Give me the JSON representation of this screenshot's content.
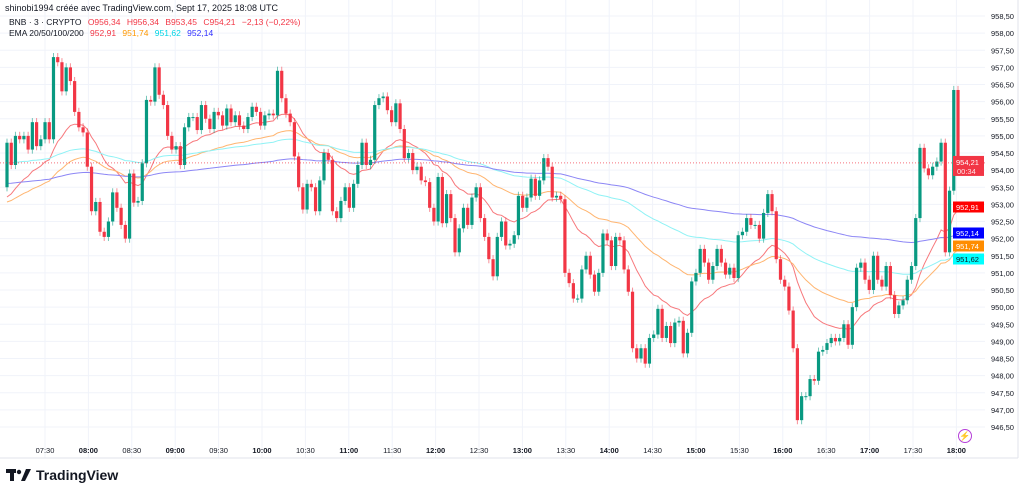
{
  "header": {
    "attribution": "shinobi1994 créée avec TradingView.com, Sept 17, 2025 18:08 UTC"
  },
  "legend": {
    "symbol": "BNB · 3 · CRYPTO",
    "open": "O956,34",
    "high": "H956,34",
    "low": "B953,45",
    "close": "C954,21",
    "change": "−2,13 (−0,22%)",
    "ema_label": "EMA 20/50/100/200",
    "ema20": "952,91",
    "ema50": "951,74",
    "ema100": "951,62",
    "ema200": "952,14"
  },
  "branding": {
    "logo_text": "TradingView"
  },
  "colors": {
    "up": "#089981",
    "down": "#f23645",
    "ema20": "#f7787c",
    "ema50": "#ffb570",
    "ema100": "#8ff2f5",
    "ema200": "#8c86f5",
    "ema20_label": "#ff0000",
    "ema50_label": "#ff8c00",
    "ema100_label": "#00ffff",
    "ema200_label": "#0000ff"
  },
  "chart_data": {
    "type": "candlestick",
    "title": "BNB · 3 · CRYPTO",
    "interval_minutes": 3,
    "y_range": [
      946.5,
      958.5
    ],
    "y_ticks": [
      "958,50",
      "958,00",
      "957,50",
      "957,00",
      "956,50",
      "956,00",
      "955,50",
      "955,00",
      "954,50",
      "954,00",
      "953,50",
      "953,00",
      "952,50",
      "952,00",
      "951,50",
      "951,00",
      "950,50",
      "950,00",
      "949,50",
      "949,00",
      "948,50",
      "948,00",
      "947,50",
      "947,00",
      "946,50"
    ],
    "x_ticks": [
      "07:30",
      "08:00",
      "08:30",
      "09:00",
      "09:30",
      "10:00",
      "10:30",
      "11:00",
      "11:30",
      "12:00",
      "12:30",
      "13:00",
      "13:30",
      "14:00",
      "14:30",
      "15:00",
      "15:30",
      "16:00",
      "16:30",
      "17:00",
      "17:30",
      "18:00"
    ],
    "grid": true,
    "first_open": 953.5,
    "close": [
      954.8,
      954.15,
      955.0,
      954.9,
      955.0,
      954.6,
      955.4,
      954.7,
      954.9,
      955.4,
      954.9,
      957.3,
      957.15,
      956.3,
      957.0,
      956.6,
      955.7,
      955.25,
      955.1,
      954.1,
      952.8,
      953.07,
      952.2,
      952.05,
      952.5,
      953.35,
      952.9,
      952.4,
      952.0,
      953.9,
      953.05,
      953.1,
      954.2,
      956.05,
      956.0,
      957.0,
      956.2,
      955.9,
      955.0,
      954.6,
      954.7,
      954.15,
      955.25,
      955.55,
      955.55,
      955.17,
      955.9,
      955.5,
      955.2,
      955.7,
      955.6,
      955.3,
      955.8,
      955.4,
      955.6,
      955.3,
      955.2,
      955.55,
      955.85,
      955.7,
      955.3,
      955.6,
      955.65,
      955.6,
      956.9,
      956.1,
      955.65,
      955.4,
      954.4,
      953.5,
      952.85,
      953.6,
      953.5,
      952.8,
      953.7,
      954.5,
      954.3,
      952.8,
      952.6,
      953.1,
      953.5,
      952.9,
      953.6,
      954.15,
      954.8,
      954.15,
      954.3,
      955.9,
      956.1,
      956.15,
      955.75,
      955.4,
      955.95,
      955.2,
      954.35,
      954.5,
      954.0,
      954.1,
      953.7,
      953.65,
      952.9,
      952.5,
      953.8,
      952.45,
      953.3,
      952.6,
      951.6,
      952.3,
      952.9,
      952.4,
      953.2,
      953.5,
      952.6,
      952.05,
      951.4,
      950.9,
      952.05,
      952.5,
      951.8,
      951.85,
      952.1,
      953.25,
      952.9,
      953.2,
      953.75,
      953.25,
      953.7,
      954.35,
      954.1,
      953.2,
      953.25,
      953.15,
      951.0,
      950.7,
      950.25,
      950.25,
      951.1,
      951.5,
      950.95,
      950.45,
      951.0,
      952.15,
      951.95,
      951.2,
      952.05,
      951.95,
      951.1,
      950.45,
      948.8,
      948.5,
      948.8,
      948.35,
      949.1,
      949.2,
      949.95,
      949.1,
      949.45,
      948.95,
      949.55,
      949.6,
      948.65,
      949.25,
      950.75,
      951.0,
      951.7,
      951.3,
      950.8,
      951.2,
      951.7,
      951.3,
      950.95,
      951.15,
      950.85,
      952.1,
      952.2,
      952.6,
      952.4,
      952.4,
      952.0,
      952.75,
      953.3,
      952.8,
      951.4,
      950.8,
      950.6,
      949.9,
      948.8,
      946.7,
      947.4,
      947.4,
      947.9,
      947.85,
      948.7,
      948.75,
      948.95,
      949.1,
      949.0,
      949.1,
      949.5,
      948.9,
      950.0,
      951.15,
      951.3,
      950.8,
      950.5,
      951.5,
      950.8,
      950.6,
      951.2,
      950.35,
      949.8,
      950.05,
      950.2,
      950.8,
      951.2,
      952.6,
      954.65,
      954.05,
      953.85,
      954.1,
      954.25,
      954.8,
      951.6,
      953.4,
      956.34,
      954.21
    ],
    "ema_initial": {
      "ema20": 953.05,
      "ema50": 953.0,
      "ema100": 954.2,
      "ema200": 953.6
    },
    "ema_periods": [
      20,
      50,
      100,
      200
    ],
    "last_price": {
      "value": 954.21,
      "label": "954,21",
      "countdown": "00:34"
    },
    "ema_axis_labels": {
      "ema20": "952,91",
      "ema200": "952,14",
      "ema50": "951,74",
      "ema100": "951,62"
    }
  }
}
